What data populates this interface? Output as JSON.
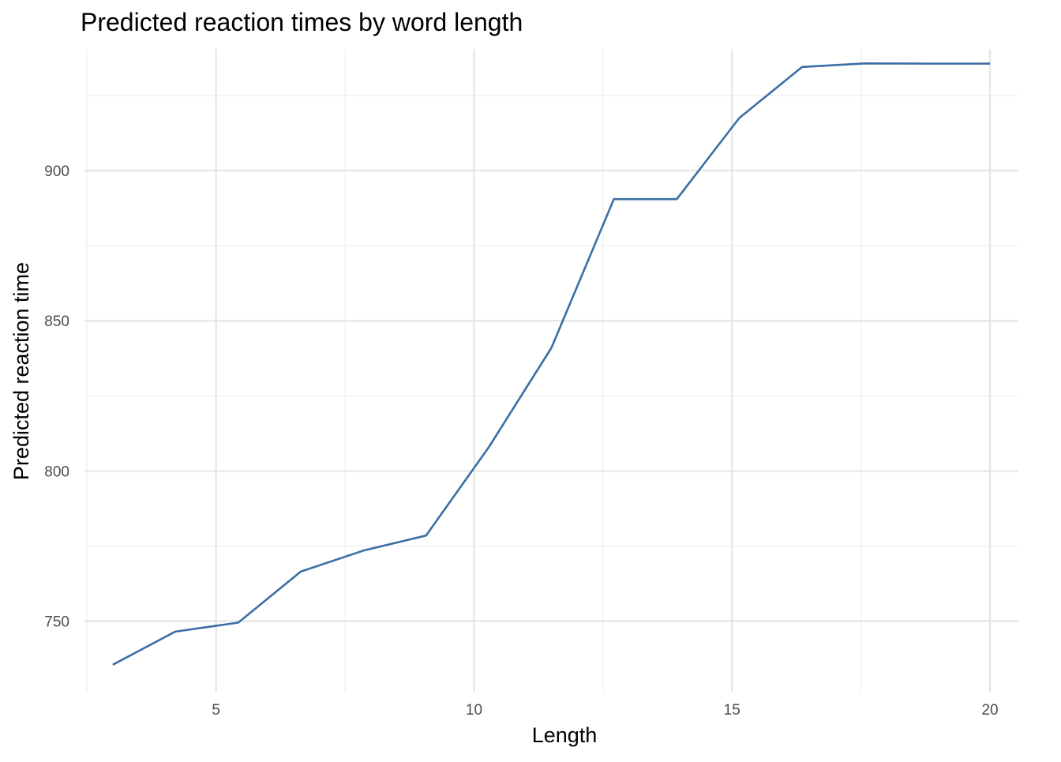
{
  "chart_data": {
    "type": "line",
    "title": "Predicted reaction times by word length",
    "xlabel": "Length",
    "ylabel": "Predicted reaction time",
    "xlim": [
      2.45,
      20.55
    ],
    "ylim": [
      726.5,
      940.5
    ],
    "x_ticks": [
      5,
      10,
      15,
      20
    ],
    "x_minor": [
      2.5,
      7.5,
      12.5,
      17.5
    ],
    "y_ticks": [
      750,
      800,
      850,
      900
    ],
    "y_minor": [
      775,
      825,
      875,
      925
    ],
    "grid": true,
    "legend": "none",
    "color": "#3a6ea5",
    "series": [
      {
        "x": [
          3.0,
          4.21,
          5.43,
          6.64,
          7.86,
          9.07,
          10.29,
          11.5,
          12.71,
          13.93,
          15.14,
          16.36,
          17.57,
          18.79,
          20.0
        ],
        "y": [
          735.5,
          746.5,
          749.5,
          766.5,
          773.5,
          778.5,
          808.0,
          841.0,
          890.5,
          890.5,
          917.5,
          934.5,
          935.7,
          935.6,
          935.6
        ]
      }
    ]
  }
}
